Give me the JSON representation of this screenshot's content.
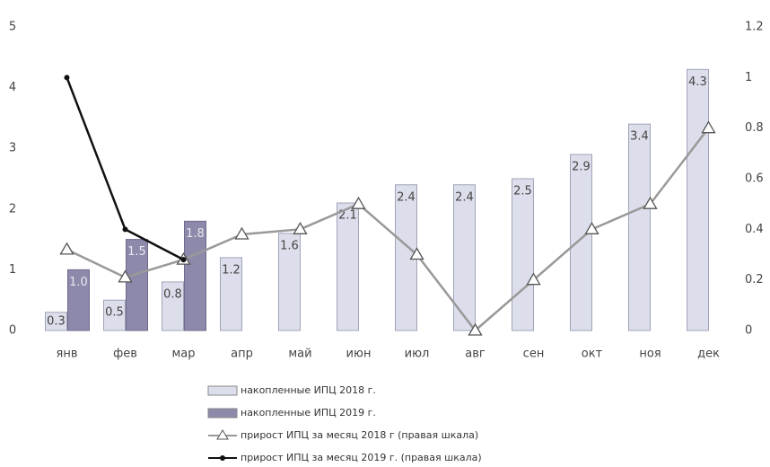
{
  "chart_data": {
    "type": "bar-line",
    "categories": [
      "янв",
      "фев",
      "мар",
      "апр",
      "май",
      "июн",
      "июл",
      "авг",
      "сен",
      "окт",
      "ноя",
      "дек"
    ],
    "series": [
      {
        "name": "накопленные ИПЦ 2018 г.",
        "type": "bar",
        "color": "#dcdfeb",
        "values": [
          0.3,
          0.5,
          0.8,
          1.2,
          1.6,
          2.1,
          2.4,
          2.4,
          2.5,
          2.9,
          3.4,
          4.3
        ]
      },
      {
        "name": "накопленные ИПЦ 2019 г.",
        "type": "bar",
        "color": "#8c89aa",
        "values": [
          1,
          1.5,
          1.8,
          null,
          null,
          null,
          null,
          null,
          null,
          null,
          null,
          null
        ],
        "value_labels": [
          "1.0",
          "1.5",
          "1.8",
          null,
          null,
          null,
          null,
          null,
          null,
          null,
          null,
          null
        ]
      },
      {
        "name": "прирост ИПЦ за месяц 2018 г (правая шкала)",
        "type": "line",
        "axis": "y2",
        "color": "#999999",
        "marker": "triangle",
        "values": [
          0.32,
          0.21,
          0.28,
          0.38,
          0.4,
          0.5,
          0.3,
          0,
          0.2,
          0.4,
          0.5,
          0.8
        ]
      },
      {
        "name": "прирост ИПЦ за месяц 2019 г. (правая шкала)",
        "type": "line",
        "axis": "y2",
        "color": "#111111",
        "marker": "dot",
        "values": [
          1,
          0.4,
          0.28,
          null,
          null,
          null,
          null,
          null,
          null,
          null,
          null,
          null
        ]
      }
    ],
    "ylim": [
      0,
      5
    ],
    "yticks": [
      0,
      1,
      2,
      3,
      4,
      5
    ],
    "y2lim": [
      0,
      1.2
    ],
    "y2ticks": [
      0,
      0.2,
      0.4,
      0.6,
      0.8,
      1,
      1.2
    ],
    "grid": false
  }
}
